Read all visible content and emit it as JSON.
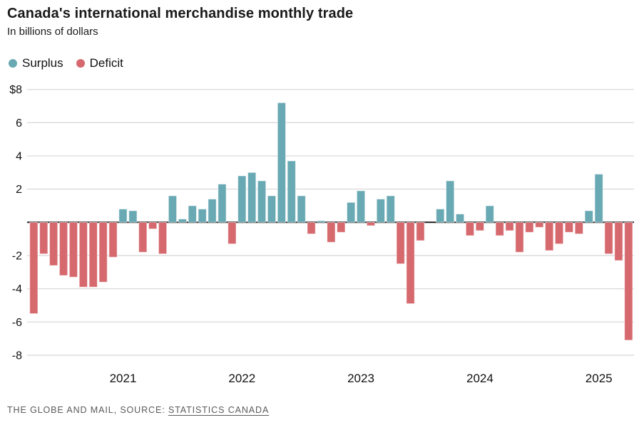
{
  "title": "Canada's international merchandise monthly trade",
  "subtitle": "In billions of dollars",
  "legend": {
    "surplus_label": "Surplus",
    "deficit_label": "Deficit"
  },
  "footer": {
    "prefix": "THE GLOBE AND MAIL, SOURCE: ",
    "source_link": "STATISTICS CANADA"
  },
  "chart_data": {
    "type": "bar",
    "title": "Canada's international merchandise monthly trade",
    "subtitle": "In billions of dollars",
    "unit": "billions of Canadian dollars",
    "legend_entries": [
      "Surplus",
      "Deficit"
    ],
    "surplus_color": "#69a9b3",
    "deficit_color": "#d6696e",
    "grid": "horizontal",
    "ylim": [
      -8,
      8
    ],
    "yticks": [
      {
        "value": 8,
        "label": "$8"
      },
      {
        "value": 6,
        "label": "6"
      },
      {
        "value": 4,
        "label": "4"
      },
      {
        "value": 2,
        "label": "2"
      },
      {
        "value": -2,
        "label": "-2"
      },
      {
        "value": -4,
        "label": "-4"
      },
      {
        "value": -6,
        "label": "-6"
      },
      {
        "value": -8,
        "label": "-8"
      }
    ],
    "xticks": [
      {
        "label": "2021",
        "month_index": 9
      },
      {
        "label": "2022",
        "month_index": 21
      },
      {
        "label": "2023",
        "month_index": 33
      },
      {
        "label": "2024",
        "month_index": 45
      },
      {
        "label": "2025",
        "month_index": 57
      }
    ],
    "months": [
      "2020-04",
      "2020-05",
      "2020-06",
      "2020-07",
      "2020-08",
      "2020-09",
      "2020-10",
      "2020-11",
      "2020-12",
      "2021-01",
      "2021-02",
      "2021-03",
      "2021-04",
      "2021-05",
      "2021-06",
      "2021-07",
      "2021-08",
      "2021-09",
      "2021-10",
      "2021-11",
      "2021-12",
      "2022-01",
      "2022-02",
      "2022-03",
      "2022-04",
      "2022-05",
      "2022-06",
      "2022-07",
      "2022-08",
      "2022-09",
      "2022-10",
      "2022-11",
      "2022-12",
      "2023-01",
      "2023-02",
      "2023-03",
      "2023-04",
      "2023-05",
      "2023-06",
      "2023-07",
      "2023-08",
      "2023-09",
      "2023-10",
      "2023-11",
      "2023-12",
      "2024-01",
      "2024-02",
      "2024-03",
      "2024-04",
      "2024-05",
      "2024-06",
      "2024-07",
      "2024-08",
      "2024-09",
      "2024-10",
      "2024-11",
      "2024-12",
      "2025-01",
      "2025-02",
      "2025-03",
      "2025-04"
    ],
    "values": [
      -5.5,
      -1.9,
      -2.6,
      -3.2,
      -3.3,
      -3.9,
      -3.9,
      -3.6,
      -2.1,
      0.8,
      0.7,
      -1.8,
      -0.4,
      -1.9,
      1.6,
      0.2,
      1.0,
      0.8,
      1.4,
      2.3,
      -1.3,
      2.8,
      3.0,
      2.5,
      1.6,
      7.2,
      3.7,
      1.6,
      -0.7,
      0.1,
      -1.2,
      -0.6,
      1.2,
      1.9,
      -0.2,
      1.4,
      1.6,
      -2.5,
      -4.9,
      -1.1,
      0.0,
      0.8,
      2.5,
      0.5,
      -0.8,
      -0.5,
      1.0,
      -0.8,
      -0.5,
      -1.8,
      -0.6,
      -0.3,
      -1.7,
      -1.3,
      -0.6,
      -0.7,
      0.7,
      2.9,
      -1.9,
      -2.3,
      -7.1
    ]
  }
}
